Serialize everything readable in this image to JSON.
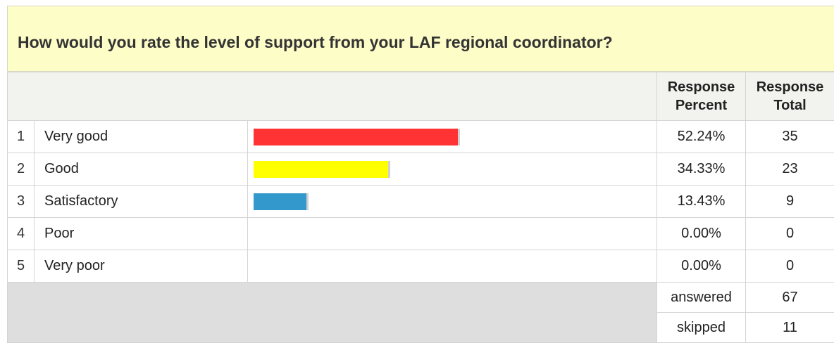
{
  "question": "How would you rate the level of support from your LAF regional coordinator?",
  "columns": [
    "Response Percent",
    "Response Total"
  ],
  "rows": [
    {
      "index": 1,
      "label": "Very good",
      "percent": 52.24,
      "percent_label": "52.24%",
      "total": 35,
      "color": "#ff3333"
    },
    {
      "index": 2,
      "label": "Good",
      "percent": 34.33,
      "percent_label": "34.33%",
      "total": 23,
      "color": "#ffff00"
    },
    {
      "index": 3,
      "label": "Satisfactory",
      "percent": 13.43,
      "percent_label": "13.43%",
      "total": 9,
      "color": "#3399cc"
    },
    {
      "index": 4,
      "label": "Poor",
      "percent": 0,
      "percent_label": "0.00%",
      "total": 0,
      "color": "#cccccc"
    },
    {
      "index": 5,
      "label": "Very poor",
      "percent": 0,
      "percent_label": "0.00%",
      "total": 0,
      "color": "#cccccc"
    }
  ],
  "summary": [
    {
      "label": "answered",
      "value": 67
    },
    {
      "label": "skipped",
      "value": 11
    }
  ]
}
